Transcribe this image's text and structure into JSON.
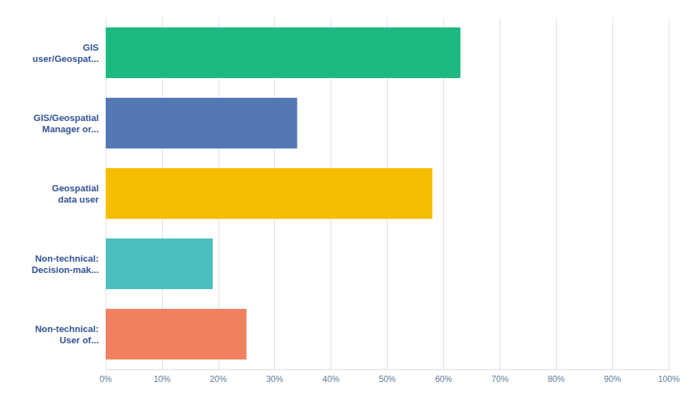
{
  "chart_data": {
    "type": "bar",
    "orientation": "horizontal",
    "categories": [
      "GIS\nuser/Geospat...",
      "GIS/Geospatial\nManager or...",
      "Geospatial\ndata user",
      "Non-technical:\nDecision-mak...",
      "Non-technical:\nUser of..."
    ],
    "values": [
      63,
      34,
      58,
      19,
      25
    ],
    "colors": [
      "#1EB980",
      "#5478B4",
      "#F5BE00",
      "#4BBFBF",
      "#F08060"
    ],
    "xlim": [
      0,
      100
    ],
    "xticks": [
      {
        "value": 0,
        "label": "0%"
      },
      {
        "value": 10,
        "label": "10%"
      },
      {
        "value": 20,
        "label": "20%"
      },
      {
        "value": 30,
        "label": "30%"
      },
      {
        "value": 40,
        "label": "40%"
      },
      {
        "value": 50,
        "label": "50%"
      },
      {
        "value": 60,
        "label": "60%"
      },
      {
        "value": 70,
        "label": "70%"
      },
      {
        "value": 80,
        "label": "80%"
      },
      {
        "value": 90,
        "label": "90%"
      },
      {
        "value": 100,
        "label": "100%"
      }
    ],
    "grid": true
  }
}
